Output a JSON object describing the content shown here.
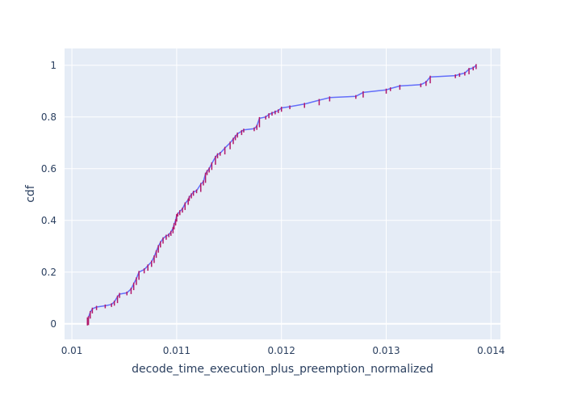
{
  "chart_data": {
    "type": "line",
    "title": "",
    "xlabel": "decode_time_execution_plus_preemption_normalized",
    "ylabel": "cdf",
    "xlim": [
      0.00993,
      0.01409
    ],
    "ylim": [
      -0.06,
      1.065
    ],
    "xticks": [
      0.01,
      0.011,
      0.012,
      0.013,
      0.014
    ],
    "xtick_labels": [
      "0.01",
      "0.011",
      "0.012",
      "0.013",
      "0.014"
    ],
    "yticks": [
      0,
      0.2,
      0.4,
      0.6,
      0.8,
      1
    ],
    "ytick_labels": [
      "0",
      "0.2",
      "0.4",
      "0.6",
      "0.8",
      "1"
    ],
    "grid": true,
    "legend": "none",
    "colors": {
      "plot_background": "#e5ecf6",
      "grid": "#ffffff",
      "line": "#636efa",
      "step_markers": "#b2186b"
    },
    "series": [
      {
        "x": [
          0.010148,
          0.010158,
          0.010175,
          0.010195,
          0.010235,
          0.010318,
          0.010378,
          0.010405,
          0.010435,
          0.010455,
          0.010525,
          0.010565,
          0.01059,
          0.010615,
          0.01064,
          0.01069,
          0.010725,
          0.01076,
          0.010785,
          0.010805,
          0.010825,
          0.010845,
          0.01087,
          0.0109,
          0.010925,
          0.010945,
          0.010965,
          0.010975,
          0.01099,
          0.011,
          0.01101,
          0.01103,
          0.011055,
          0.01108,
          0.01111,
          0.01112,
          0.01114,
          0.01116,
          0.01119,
          0.01123,
          0.011255,
          0.011275,
          0.01129,
          0.01131,
          0.011335,
          0.01137,
          0.01139,
          0.011415,
          0.01146,
          0.01151,
          0.01154,
          0.01156,
          0.01158,
          0.01162,
          0.01164,
          0.01174,
          0.011765,
          0.01179,
          0.01185,
          0.01188,
          0.01191,
          0.01194,
          0.01197,
          0.012,
          0.01208,
          0.01222,
          0.01236,
          0.01246,
          0.01271,
          0.01278,
          0.013,
          0.01304,
          0.01313,
          0.01333,
          0.01338,
          0.01342,
          0.01366,
          0.0137,
          0.01375,
          0.01379,
          0.01383,
          0.013858
        ],
        "y": [
          0,
          0.025,
          0.045,
          0.058,
          0.065,
          0.07,
          0.075,
          0.085,
          0.105,
          0.115,
          0.12,
          0.135,
          0.155,
          0.175,
          0.2,
          0.21,
          0.225,
          0.24,
          0.26,
          0.28,
          0.3,
          0.315,
          0.33,
          0.34,
          0.345,
          0.355,
          0.37,
          0.385,
          0.4,
          0.42,
          0.425,
          0.435,
          0.445,
          0.465,
          0.48,
          0.49,
          0.5,
          0.51,
          0.515,
          0.54,
          0.55,
          0.58,
          0.59,
          0.6,
          0.62,
          0.645,
          0.655,
          0.66,
          0.68,
          0.7,
          0.715,
          0.725,
          0.735,
          0.745,
          0.75,
          0.755,
          0.765,
          0.795,
          0.8,
          0.81,
          0.815,
          0.82,
          0.825,
          0.835,
          0.84,
          0.85,
          0.865,
          0.875,
          0.88,
          0.895,
          0.905,
          0.91,
          0.92,
          0.925,
          0.935,
          0.955,
          0.96,
          0.965,
          0.97,
          0.985,
          0.99,
          1.0
        ]
      }
    ]
  }
}
